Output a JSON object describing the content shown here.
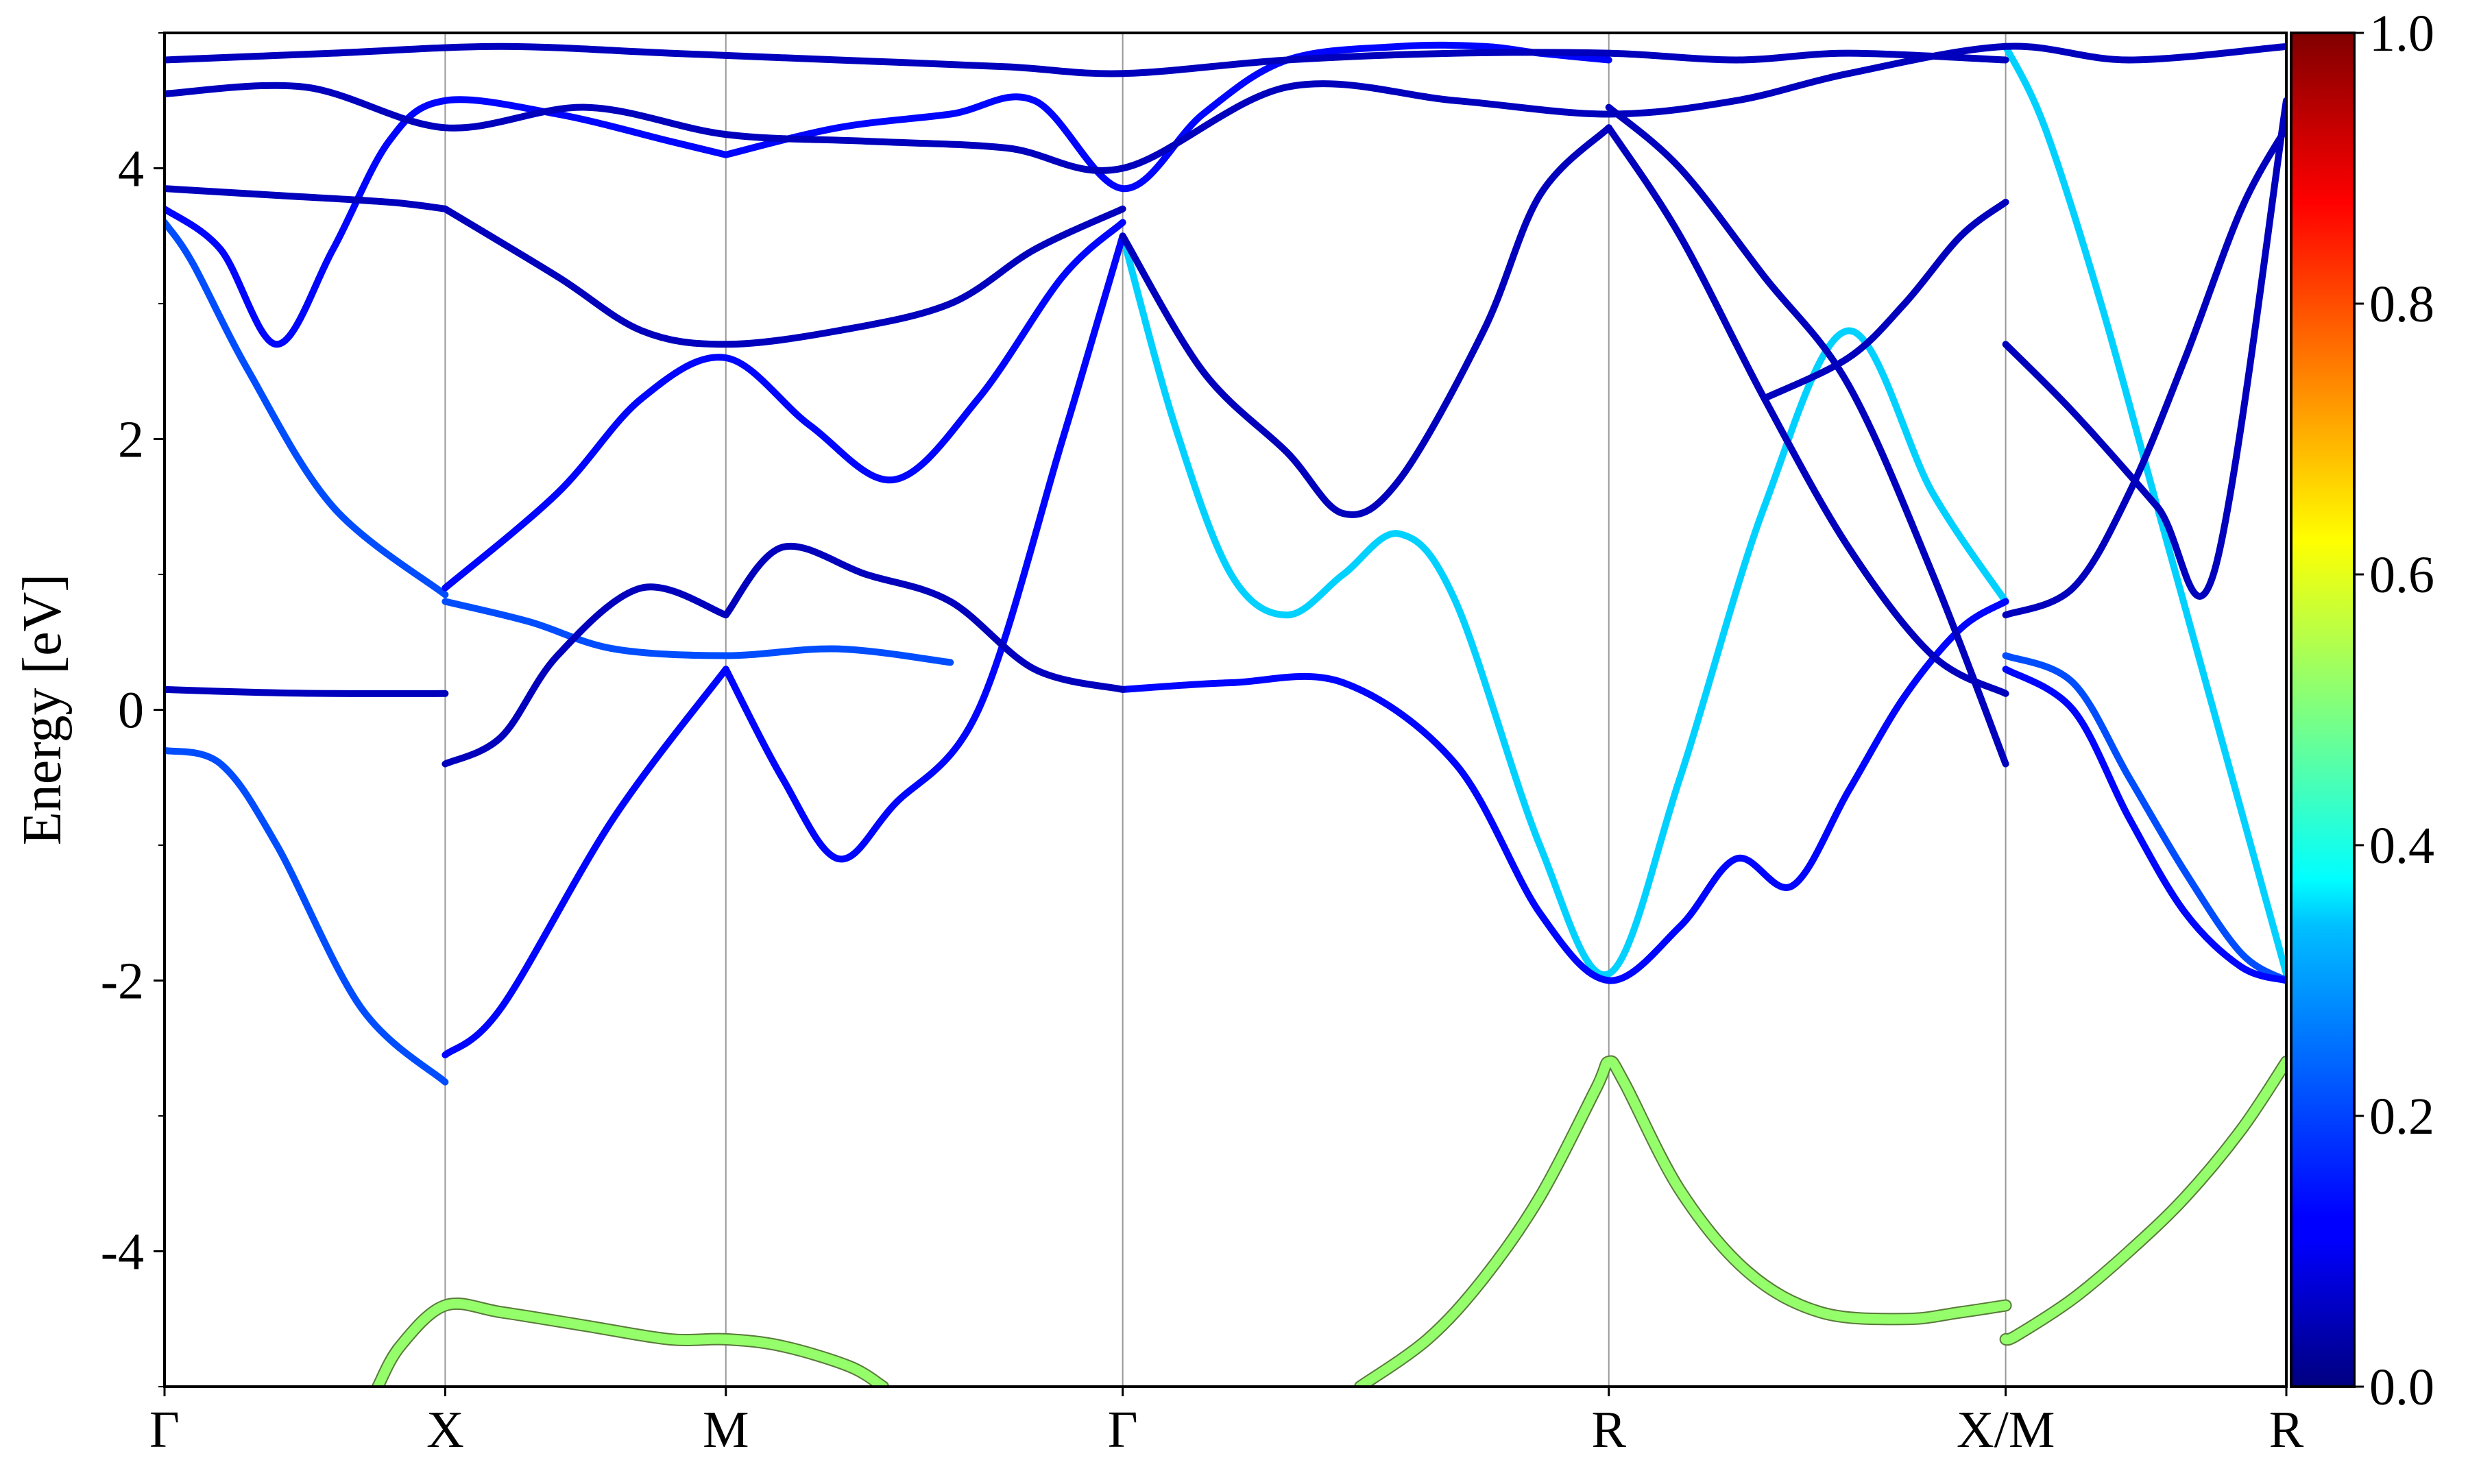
{
  "chart_data": {
    "type": "line",
    "ylabel": "Energy [eV]",
    "ylim": [
      -5,
      5
    ],
    "y_ticks": [
      {
        "value": 4,
        "label": "4"
      },
      {
        "value": 2,
        "label": "2"
      },
      {
        "value": 0,
        "label": "0"
      },
      {
        "value": -2,
        "label": "-2"
      },
      {
        "value": -4,
        "label": "-4"
      }
    ],
    "y_minor_ticks": [
      -5,
      -3,
      -1,
      1,
      3,
      5
    ],
    "grid": "vertical lines at high-symmetry points",
    "kpath": [
      {
        "label": "Γ",
        "x": 0.0
      },
      {
        "label": "X",
        "x": 0.5
      },
      {
        "label": "M",
        "x": 1.0
      },
      {
        "label": "Γ",
        "x": 1.707
      },
      {
        "label": "R",
        "x": 2.573
      },
      {
        "label": "X/M",
        "x": 3.28
      },
      {
        "label": "R",
        "x": 3.78
      }
    ],
    "colorbar": {
      "colormap": "jet",
      "min": 0.0,
      "max": 1.0,
      "ticks": [
        {
          "value": 1.0,
          "label": "1.0"
        },
        {
          "value": 0.8,
          "label": "0.8"
        },
        {
          "value": 0.6,
          "label": "0.6"
        },
        {
          "value": 0.4,
          "label": "0.4"
        },
        {
          "value": 0.2,
          "label": "0.2"
        },
        {
          "value": 0.0,
          "label": "0.0"
        }
      ]
    },
    "series": [
      {
        "weight": 0.52,
        "segments": [
          {
            "x": [
              0.38,
              0.42,
              0.5,
              0.6,
              0.75,
              0.9,
              1.0,
              1.1,
              1.22,
              1.28
            ],
            "y": [
              -5.0,
              -4.7,
              -4.4,
              -4.45,
              -4.55,
              -4.65,
              -4.65,
              -4.7,
              -4.85,
              -5.0
            ]
          },
          {
            "x": [
              2.13,
              2.25,
              2.35,
              2.45,
              2.55,
              2.573,
              2.6,
              2.7,
              2.82,
              2.95,
              3.1,
              3.2,
              3.28
            ],
            "y": [
              -5.0,
              -4.65,
              -4.2,
              -3.6,
              -2.8,
              -2.6,
              -2.75,
              -3.55,
              -4.15,
              -4.45,
              -4.5,
              -4.45,
              -4.4
            ]
          },
          {
            "x": [
              3.28,
              3.3,
              3.4,
              3.5,
              3.6,
              3.7,
              3.78
            ],
            "y": [
              -4.65,
              -4.62,
              -4.35,
              -4.0,
              -3.6,
              -3.1,
              -2.6
            ]
          }
        ]
      },
      {
        "weight": 0.33,
        "segments": [
          {
            "x": [
              1.707,
              1.8,
              1.9,
              2.0,
              2.1,
              2.2,
              2.3,
              2.45,
              2.573,
              2.7,
              2.85,
              3.0,
              3.15,
              3.28
            ],
            "y": [
              3.5,
              2.1,
              1.0,
              0.7,
              1.0,
              1.3,
              0.8,
              -1.0,
              -1.95,
              -0.5,
              1.5,
              2.8,
              1.6,
              0.8
            ]
          },
          {
            "x": [
              3.28,
              3.35,
              3.45,
              3.55,
              3.65,
              3.78
            ],
            "y": [
              4.9,
              4.3,
              3.0,
              1.5,
              0.0,
              -1.95
            ]
          }
        ]
      },
      {
        "weight": 0.2,
        "segments": [
          {
            "x": [
              0.0,
              0.1,
              0.2,
              0.35,
              0.5
            ],
            "y": [
              -0.3,
              -0.4,
              -1.0,
              -2.2,
              -2.75
            ]
          },
          {
            "x": [
              0.0,
              0.05,
              0.15,
              0.3,
              0.5
            ],
            "y": [
              3.6,
              3.3,
              2.5,
              1.5,
              0.85
            ]
          },
          {
            "x": [
              0.5,
              0.65,
              0.8,
              1.0,
              1.2,
              1.4
            ],
            "y": [
              0.8,
              0.65,
              0.45,
              0.4,
              0.45,
              0.35
            ]
          },
          {
            "x": [
              3.28,
              3.4,
              3.5,
              3.6,
              3.7,
              3.78
            ],
            "y": [
              0.4,
              0.2,
              -0.5,
              -1.2,
              -1.8,
              -2.0
            ]
          }
        ]
      },
      {
        "weight": 0.13,
        "segments": [
          {
            "x": [
              0.5,
              0.6,
              0.8,
              1.0
            ],
            "y": [
              -2.55,
              -2.2,
              -0.8,
              0.3
            ]
          },
          {
            "x": [
              1.0,
              1.1,
              1.2,
              1.3,
              1.45,
              1.6,
              1.707
            ],
            "y": [
              0.3,
              -0.5,
              -1.1,
              -0.7,
              0.0,
              2.0,
              3.5
            ]
          },
          {
            "x": [
              0.5,
              0.7,
              0.85,
              1.0,
              1.15,
              1.3,
              1.45,
              1.6,
              1.707
            ],
            "y": [
              0.9,
              1.6,
              2.3,
              2.6,
              2.1,
              1.7,
              2.3,
              3.2,
              3.6
            ]
          },
          {
            "x": [
              1.707,
              1.9,
              2.1,
              2.3,
              2.45,
              2.573,
              2.7,
              2.8,
              2.9,
              3.0,
              3.1,
              3.2,
              3.28
            ],
            "y": [
              0.15,
              0.2,
              0.2,
              -0.4,
              -1.5,
              -2.0,
              -1.6,
              -1.1,
              -1.3,
              -0.6,
              0.1,
              0.6,
              0.8
            ]
          },
          {
            "x": [
              0.0,
              0.1,
              0.2,
              0.3,
              0.4,
              0.5,
              0.7,
              0.9,
              1.0
            ],
            "y": [
              3.7,
              3.4,
              2.7,
              3.4,
              4.2,
              4.5,
              4.4,
              4.2,
              4.1
            ]
          },
          {
            "x": [
              1.0,
              1.2,
              1.4,
              1.55,
              1.707,
              1.85,
              2.0,
              2.2,
              2.35,
              2.45,
              2.573
            ],
            "y": [
              4.1,
              4.3,
              4.4,
              4.5,
              3.85,
              4.4,
              4.8,
              4.9,
              4.9,
              4.85,
              4.8
            ]
          },
          {
            "x": [
              3.28,
              3.4,
              3.5,
              3.6,
              3.7,
              3.78
            ],
            "y": [
              0.3,
              0.0,
              -0.8,
              -1.5,
              -1.9,
              -2.0
            ]
          }
        ]
      },
      {
        "weight": 0.06,
        "segments": [
          {
            "x": [
              0.0,
              0.15,
              0.3,
              0.5
            ],
            "y": [
              0.15,
              0.13,
              0.12,
              0.12
            ]
          },
          {
            "x": [
              0.5,
              0.6,
              0.7,
              0.85,
              1.0
            ],
            "y": [
              -0.4,
              -0.2,
              0.4,
              0.9,
              0.7
            ]
          },
          {
            "x": [
              1.0,
              1.1,
              1.25,
              1.4,
              1.55,
              1.707
            ],
            "y": [
              0.7,
              1.2,
              1.0,
              0.8,
              0.3,
              0.15
            ]
          },
          {
            "x": [
              0.0,
              0.2,
              0.4,
              0.5
            ],
            "y": [
              3.85,
              3.8,
              3.75,
              3.7
            ]
          },
          {
            "x": [
              0.5,
              0.7,
              0.85,
              1.0,
              1.2,
              1.4,
              1.55,
              1.707
            ],
            "y": [
              3.7,
              3.2,
              2.8,
              2.7,
              2.8,
              3.0,
              3.4,
              3.7
            ]
          },
          {
            "x": [
              1.707,
              1.85,
              2.0,
              2.1,
              2.2,
              2.35,
              2.45,
              2.573
            ],
            "y": [
              3.5,
              2.5,
              1.9,
              1.45,
              1.7,
              2.8,
              3.8,
              4.3
            ]
          },
          {
            "x": [
              2.573,
              2.7,
              2.85,
              3.0,
              3.15,
              3.28
            ],
            "y": [
              4.3,
              3.5,
              2.3,
              1.2,
              0.4,
              0.12
            ]
          },
          {
            "x": [
              2.573,
              2.7,
              2.85,
              3.0,
              3.15,
              3.28
            ],
            "y": [
              4.45,
              4.0,
              3.2,
              2.4,
              1.0,
              -0.4
            ]
          },
          {
            "x": [
              2.85,
              3.0,
              3.1,
              3.2,
              3.28
            ],
            "y": [
              2.3,
              2.6,
              3.0,
              3.5,
              3.75
            ]
          },
          {
            "x": [
              3.28,
              3.4,
              3.5,
              3.6,
              3.7,
              3.78
            ],
            "y": [
              0.7,
              0.9,
              1.6,
              2.6,
              3.7,
              4.3
            ]
          },
          {
            "x": [
              3.28,
              3.4,
              3.55,
              3.65,
              3.78
            ],
            "y": [
              2.7,
              2.2,
              1.5,
              1.0,
              4.5
            ]
          },
          {
            "x": [
              0.0,
              0.3,
              0.6,
              0.9,
              1.2,
              1.5,
              1.707,
              2.0,
              2.3,
              2.573,
              2.8,
              3.0,
              3.28
            ],
            "y": [
              4.8,
              4.85,
              4.9,
              4.85,
              4.8,
              4.75,
              4.7,
              4.8,
              4.85,
              4.85,
              4.8,
              4.85,
              4.8
            ]
          },
          {
            "x": [
              0.0,
              0.25,
              0.5,
              0.75,
              1.0,
              1.25,
              1.5,
              1.707,
              2.0,
              2.3,
              2.573,
              2.8,
              3.0,
              3.28,
              3.5,
              3.78
            ],
            "y": [
              4.55,
              4.6,
              4.3,
              4.45,
              4.25,
              4.2,
              4.15,
              4.0,
              4.6,
              4.5,
              4.4,
              4.5,
              4.7,
              4.9,
              4.8,
              4.9
            ]
          }
        ]
      }
    ]
  }
}
